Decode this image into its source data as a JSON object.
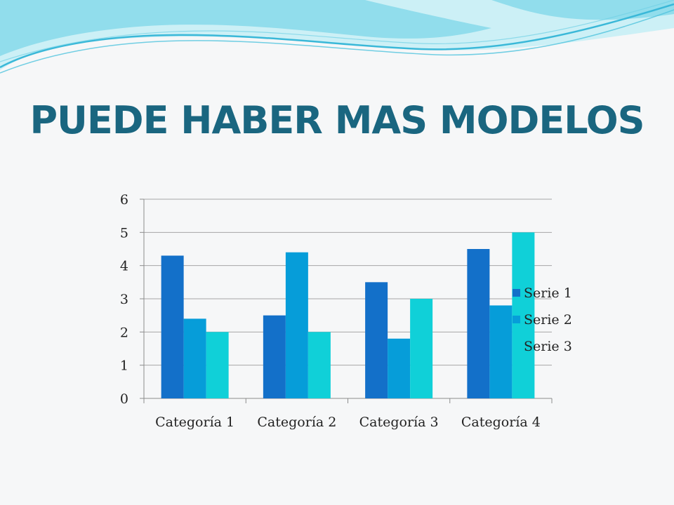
{
  "slide": {
    "title": "PUEDE HABER MAS MODELOS"
  },
  "colors": {
    "title": "#1a6680",
    "background": "#f6f7f8",
    "wave_light": "#c8eef5",
    "wave_mid": "#86d9ea",
    "wave_dark": "#3ab8d8",
    "gridline": "#a6a6a6",
    "axis": "#8c8c8c"
  },
  "chart_data": {
    "type": "bar",
    "title": "",
    "xlabel": "",
    "ylabel": "",
    "categories": [
      "Categoría 1",
      "Categoría 2",
      "Categoría 3",
      "Categoría 4"
    ],
    "series": [
      {
        "name": "Serie 1",
        "values": [
          4.3,
          2.5,
          3.5,
          4.5
        ],
        "color": "#1370c9"
      },
      {
        "name": "Serie 2",
        "values": [
          2.4,
          4.4,
          1.8,
          2.8
        ],
        "color": "#069dd9"
      },
      {
        "name": "Serie 3",
        "values": [
          2,
          2,
          3,
          5
        ],
        "color": "#10d0d8"
      }
    ],
    "ylim": [
      0,
      6
    ],
    "yticks": [
      0,
      1,
      2,
      3,
      4,
      5,
      6
    ],
    "grid": true,
    "legend_position": "right"
  }
}
